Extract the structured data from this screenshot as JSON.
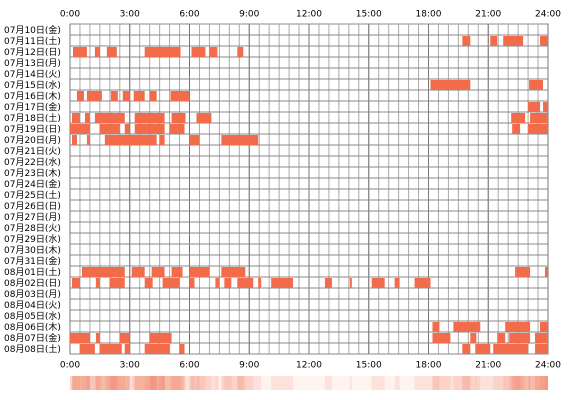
{
  "chart_data": {
    "type": "timeline",
    "color": "#f26b4a",
    "xlim": [
      0,
      24
    ],
    "grid_step": 0.5,
    "xticks": [
      {
        "value": 0,
        "label": "0:00"
      },
      {
        "value": 3,
        "label": "3:00"
      },
      {
        "value": 6,
        "label": "6:00"
      },
      {
        "value": 9,
        "label": "9:00"
      },
      {
        "value": 12,
        "label": "12:00"
      },
      {
        "value": 15,
        "label": "15:00"
      },
      {
        "value": 18,
        "label": "18:00"
      },
      {
        "value": 21,
        "label": "21:00"
      },
      {
        "value": 24,
        "label": "24:00"
      }
    ],
    "rows": [
      {
        "label": "07月10日(金)",
        "intervals": []
      },
      {
        "label": "07月11日(土)",
        "intervals": [
          [
            19.7,
            20.1
          ],
          [
            21.1,
            21.45
          ],
          [
            21.75,
            22.75
          ],
          [
            23.6,
            24
          ]
        ]
      },
      {
        "label": "07月12日(日)",
        "intervals": [
          [
            0.15,
            0.85
          ],
          [
            1.25,
            1.5
          ],
          [
            1.85,
            2.35
          ],
          [
            3.75,
            5.55
          ],
          [
            6.1,
            6.8
          ],
          [
            7,
            7.4
          ],
          [
            8.4,
            8.7
          ]
        ]
      },
      {
        "label": "07月13日(月)",
        "intervals": []
      },
      {
        "label": "07月14日(火)",
        "intervals": []
      },
      {
        "label": "07月15日(水)",
        "intervals": [
          [
            18.1,
            20.1
          ],
          [
            23.05,
            23.75
          ]
        ]
      },
      {
        "label": "07月16日(木)",
        "intervals": [
          [
            0.35,
            0.7
          ],
          [
            0.85,
            1.6
          ],
          [
            2.05,
            2.4
          ],
          [
            2.65,
            3
          ],
          [
            3.2,
            3.75
          ],
          [
            4,
            4.35
          ],
          [
            5.05,
            6
          ]
        ]
      },
      {
        "label": "07月17日(金)",
        "intervals": [
          [
            23,
            23.6
          ],
          [
            23.75,
            24
          ]
        ]
      },
      {
        "label": "07月18日(土)",
        "intervals": [
          [
            0.1,
            0.5
          ],
          [
            0.75,
            1
          ],
          [
            1.25,
            2.75
          ],
          [
            3.25,
            4.75
          ],
          [
            5.1,
            5.8
          ],
          [
            6.35,
            7.1
          ],
          [
            22.15,
            22.85
          ],
          [
            23.1,
            24
          ]
        ]
      },
      {
        "label": "07月19日(日)",
        "intervals": [
          [
            0,
            1
          ],
          [
            1.5,
            2.5
          ],
          [
            2.75,
            3
          ],
          [
            3.25,
            4.75
          ],
          [
            5,
            5.75
          ],
          [
            22.2,
            22.6
          ],
          [
            23,
            24
          ]
        ]
      },
      {
        "label": "07月20日(月)",
        "intervals": [
          [
            0.1,
            0.35
          ],
          [
            0.85,
            1
          ],
          [
            1.75,
            4.35
          ],
          [
            4.5,
            4.75
          ],
          [
            6,
            6.5
          ],
          [
            7.6,
            9.45
          ]
        ]
      },
      {
        "label": "07月21日(火)",
        "intervals": []
      },
      {
        "label": "07月22日(水)",
        "intervals": []
      },
      {
        "label": "07月23日(木)",
        "intervals": []
      },
      {
        "label": "07月24日(金)",
        "intervals": []
      },
      {
        "label": "07月25日(土)",
        "intervals": []
      },
      {
        "label": "07月26日(日)",
        "intervals": []
      },
      {
        "label": "07月27日(月)",
        "intervals": []
      },
      {
        "label": "07月28日(火)",
        "intervals": []
      },
      {
        "label": "07月29日(水)",
        "intervals": []
      },
      {
        "label": "07月30日(木)",
        "intervals": []
      },
      {
        "label": "07月31日(金)",
        "intervals": []
      },
      {
        "label": "08月01日(土)",
        "intervals": [
          [
            0.6,
            2.75
          ],
          [
            3.1,
            3.75
          ],
          [
            4.1,
            4.75
          ],
          [
            5.1,
            5.65
          ],
          [
            6,
            7
          ],
          [
            7.6,
            8.8
          ],
          [
            22.35,
            23.1
          ],
          [
            23.85,
            24
          ]
        ]
      },
      {
        "label": "08月02日(日)",
        "intervals": [
          [
            0.1,
            0.5
          ],
          [
            1.3,
            1.5
          ],
          [
            2,
            2.75
          ],
          [
            3.75,
            4.15
          ],
          [
            4.65,
            5.5
          ],
          [
            6,
            6.25
          ],
          [
            7.3,
            7.5
          ],
          [
            7.75,
            8.1
          ],
          [
            8.4,
            9.2
          ],
          [
            9.45,
            9.6
          ],
          [
            10.1,
            11.2
          ],
          [
            12.8,
            13.15
          ],
          [
            14.05,
            14.15
          ],
          [
            15.15,
            15.8
          ],
          [
            16.3,
            16.55
          ],
          [
            17.3,
            18.1
          ]
        ]
      },
      {
        "label": "08月03日(月)",
        "intervals": []
      },
      {
        "label": "08月04日(火)",
        "intervals": []
      },
      {
        "label": "08月05日(水)",
        "intervals": []
      },
      {
        "label": "08月06日(木)",
        "intervals": [
          [
            18.2,
            18.55
          ],
          [
            19.25,
            20.6
          ],
          [
            21.85,
            23.1
          ],
          [
            23.6,
            24
          ]
        ]
      },
      {
        "label": "08月07日(金)",
        "intervals": [
          [
            0,
            1
          ],
          [
            1.3,
            1.5
          ],
          [
            2.5,
            3
          ],
          [
            4,
            5.1
          ],
          [
            18.2,
            19.1
          ],
          [
            20.1,
            20.4
          ],
          [
            21.45,
            21.85
          ],
          [
            22.05,
            23.1
          ],
          [
            23.35,
            24
          ]
        ]
      },
      {
        "label": "08月08日(土)",
        "intervals": [
          [
            0.5,
            1.25
          ],
          [
            1.5,
            2.6
          ],
          [
            2.75,
            3
          ],
          [
            3.75,
            5
          ],
          [
            5.5,
            5.75
          ],
          [
            19.7,
            20.1
          ],
          [
            20.35,
            21.1
          ],
          [
            21.25,
            23
          ],
          [
            23.35,
            24
          ]
        ]
      }
    ]
  }
}
